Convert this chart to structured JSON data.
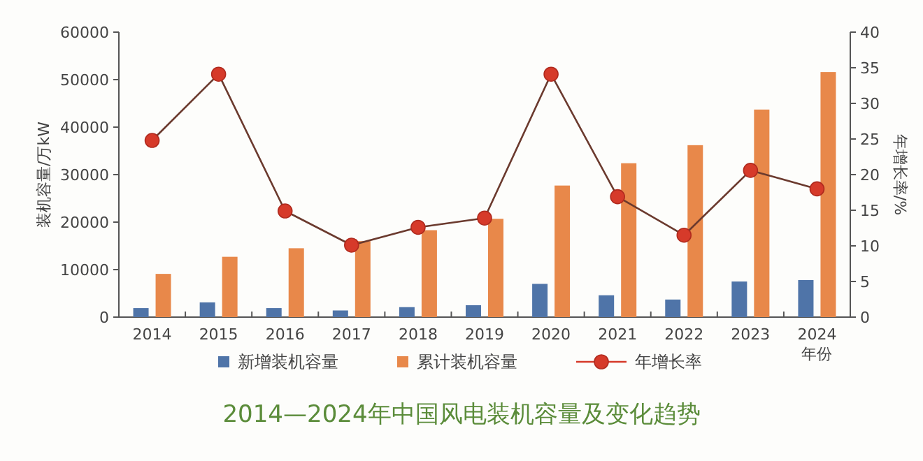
{
  "chart_data": {
    "type": "bar",
    "title": "2014—2024年中国风电装机容量及变化趋势",
    "xlabel": "年份",
    "ylabel": "装机容量/万kW",
    "y2label": "年增长率/%",
    "categories": [
      "2014",
      "2015",
      "2016",
      "2017",
      "2018",
      "2019",
      "2020",
      "2021",
      "2022",
      "2023",
      "2024"
    ],
    "series": [
      {
        "name": "新增装机容量",
        "color": "#4f74a8",
        "values": [
          1900,
          3100,
          1900,
          1400,
          2100,
          2500,
          7000,
          4600,
          3700,
          7500,
          7800
        ]
      },
      {
        "name": "累计装机容量",
        "color": "#e8884a",
        "values": [
          9100,
          12700,
          14500,
          16000,
          18300,
          20700,
          27700,
          32400,
          36200,
          43700,
          51600
        ]
      },
      {
        "name": "年增长率",
        "type": "line",
        "axis": "y2",
        "color": "#d63a2a",
        "marker": "circle",
        "values": [
          24.8,
          34.1,
          14.9,
          10.1,
          12.6,
          13.9,
          34.1,
          16.9,
          11.5,
          20.6,
          18.0
        ]
      }
    ],
    "ylim": [
      0,
      60000
    ],
    "yticks": [
      0,
      10000,
      20000,
      30000,
      40000,
      50000,
      60000
    ],
    "y2lim": [
      0,
      40
    ],
    "y2ticks": [
      0,
      5,
      10,
      15,
      20,
      25,
      30,
      35,
      40
    ],
    "grid": false,
    "legend": "bottom"
  }
}
